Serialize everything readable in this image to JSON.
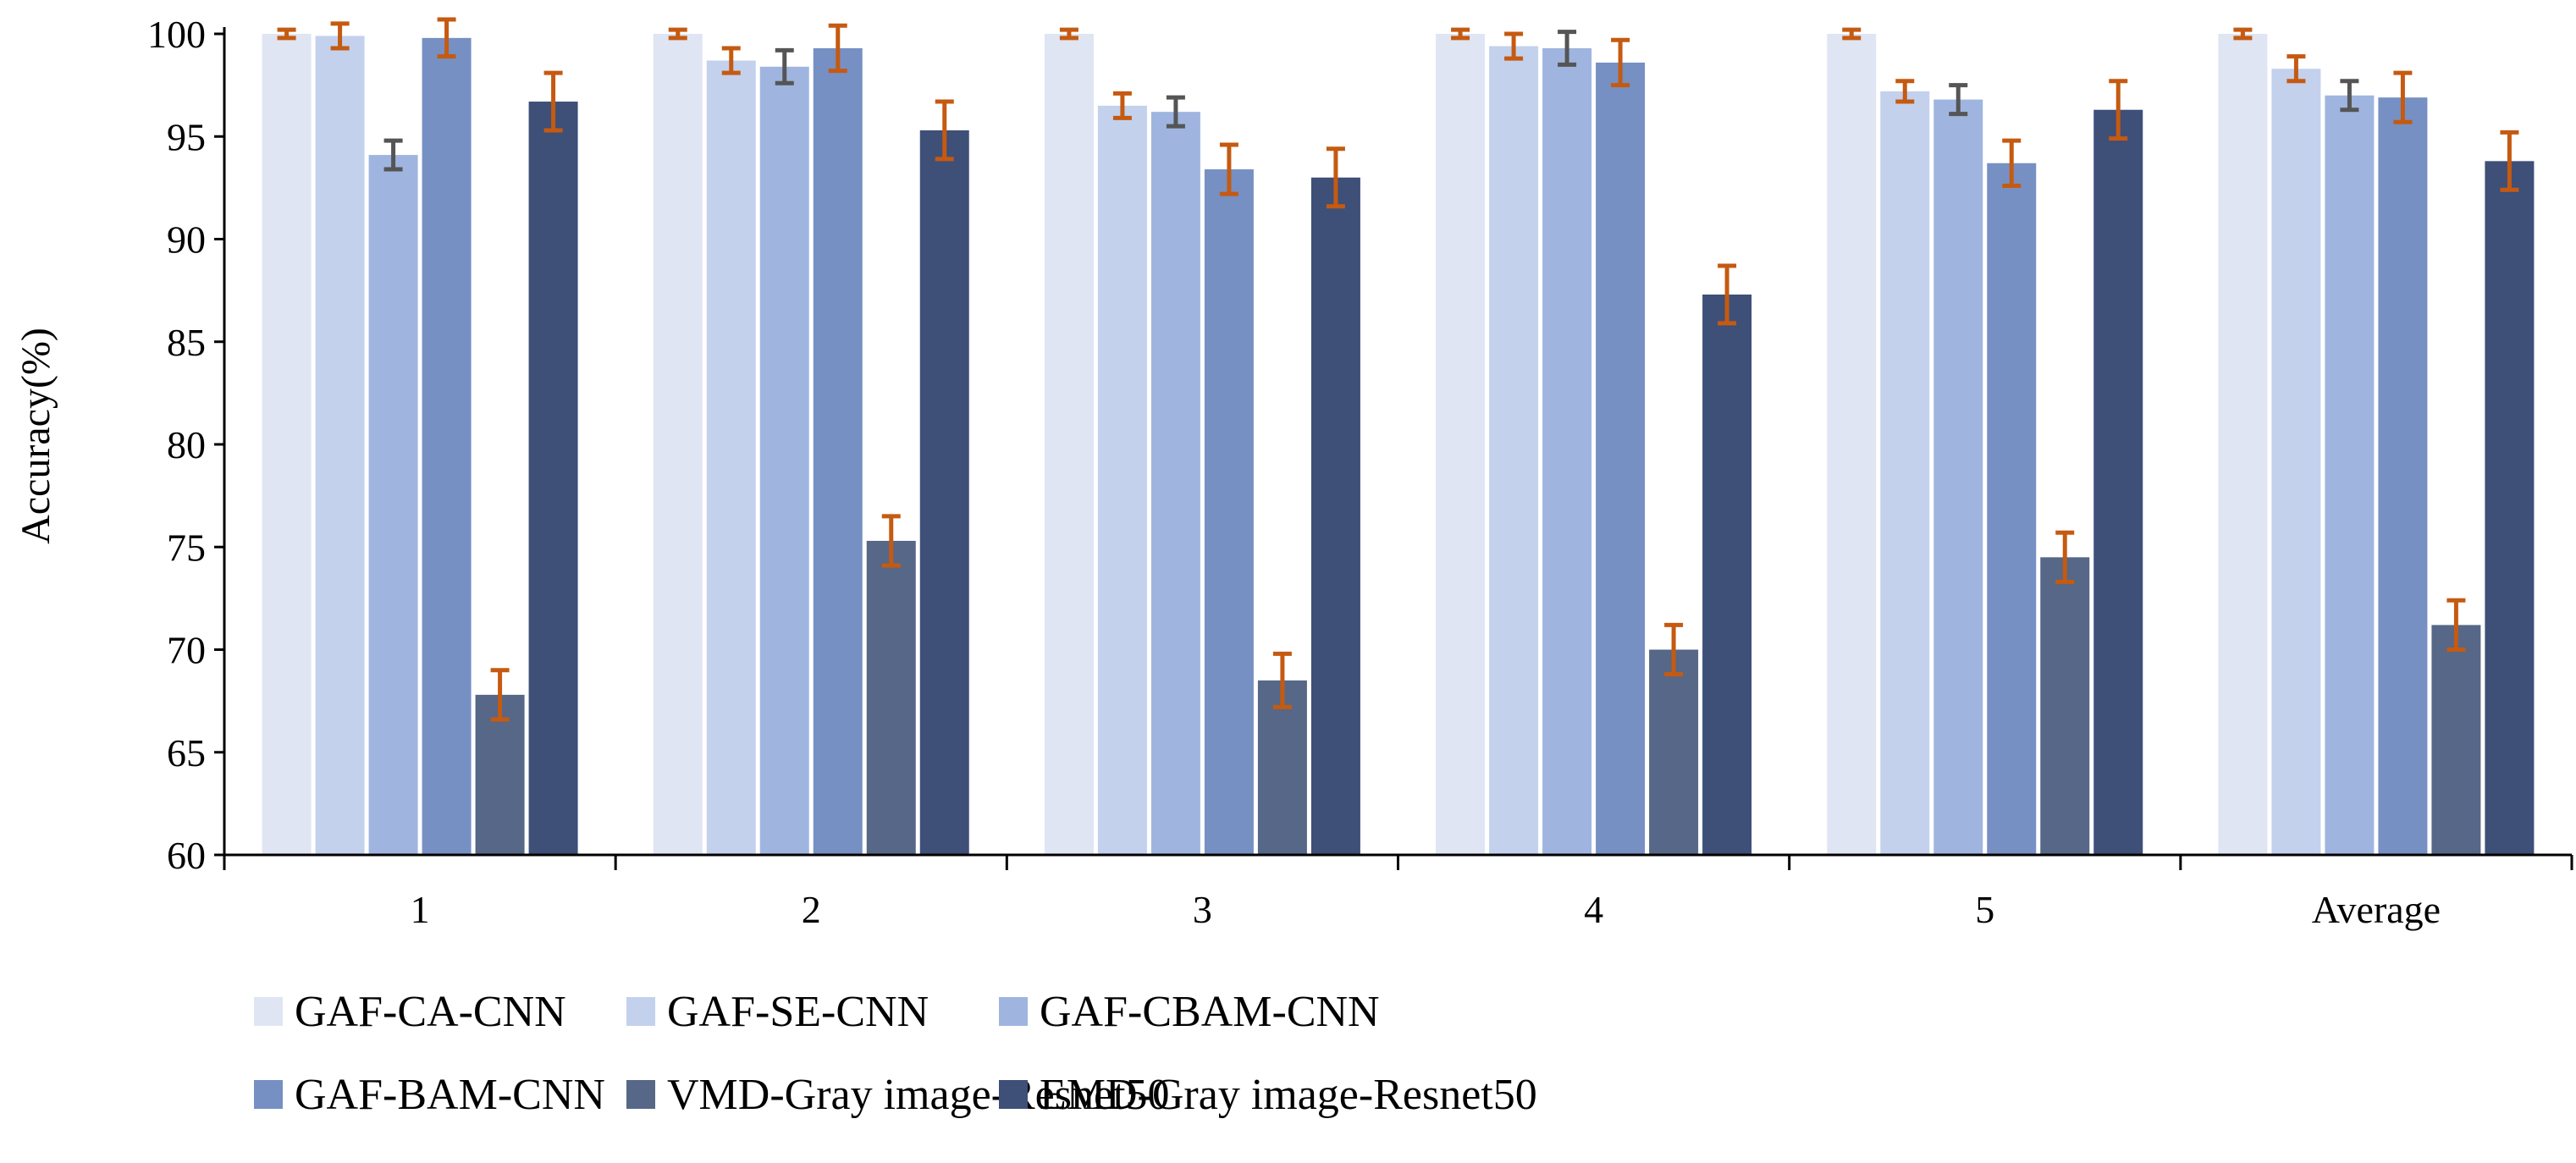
{
  "chart_data": {
    "type": "bar",
    "title": "",
    "xlabel": "",
    "ylabel": "Accuracy(%)",
    "ylim": [
      60,
      100
    ],
    "yticks": [
      60,
      65,
      70,
      75,
      80,
      85,
      90,
      95,
      100
    ],
    "grid": false,
    "legend_position": "bottom",
    "categories": [
      "1",
      "2",
      "3",
      "4",
      "5",
      "Average"
    ],
    "series": [
      {
        "name": "GAF-CA-CNN",
        "color": "#dfe5f3",
        "error_color": "#c55a11",
        "values": [
          100,
          100,
          100,
          100,
          100,
          100
        ],
        "errors": [
          0.2,
          0.2,
          0.2,
          0.2,
          0.2,
          0.2
        ]
      },
      {
        "name": "GAF-SE-CNN",
        "color": "#c3d1ed",
        "error_color": "#c55a11",
        "values": [
          99.9,
          98.7,
          96.5,
          99.4,
          97.2,
          98.3
        ],
        "errors": [
          0.6,
          0.6,
          0.6,
          0.6,
          0.5,
          0.6
        ]
      },
      {
        "name": "GAF-CBAM-CNN",
        "color": "#9fb5e0",
        "error_color": "#555555",
        "values": [
          94.1,
          98.4,
          96.2,
          99.3,
          96.8,
          97.0
        ],
        "errors": [
          0.7,
          0.8,
          0.7,
          0.8,
          0.7,
          0.7
        ]
      },
      {
        "name": "GAF-BAM-CNN",
        "color": "#7690c3",
        "error_color": "#c55a11",
        "values": [
          99.8,
          99.3,
          93.4,
          98.6,
          93.7,
          96.9
        ],
        "errors": [
          0.9,
          1.1,
          1.2,
          1.1,
          1.1,
          1.2
        ]
      },
      {
        "name": "VMD-Gray image-Resnet50",
        "color": "#566787",
        "error_color": "#c55a11",
        "values": [
          67.8,
          75.3,
          68.5,
          70.0,
          74.5,
          71.2
        ],
        "errors": [
          1.2,
          1.2,
          1.3,
          1.2,
          1.2,
          1.2
        ]
      },
      {
        "name": "EMD-Gray image-Resnet50",
        "color": "#3e4f78",
        "error_color": "#c55a11",
        "values": [
          96.7,
          95.3,
          93.0,
          87.3,
          96.3,
          93.8
        ],
        "errors": [
          1.4,
          1.4,
          1.4,
          1.4,
          1.4,
          1.4
        ]
      }
    ]
  }
}
